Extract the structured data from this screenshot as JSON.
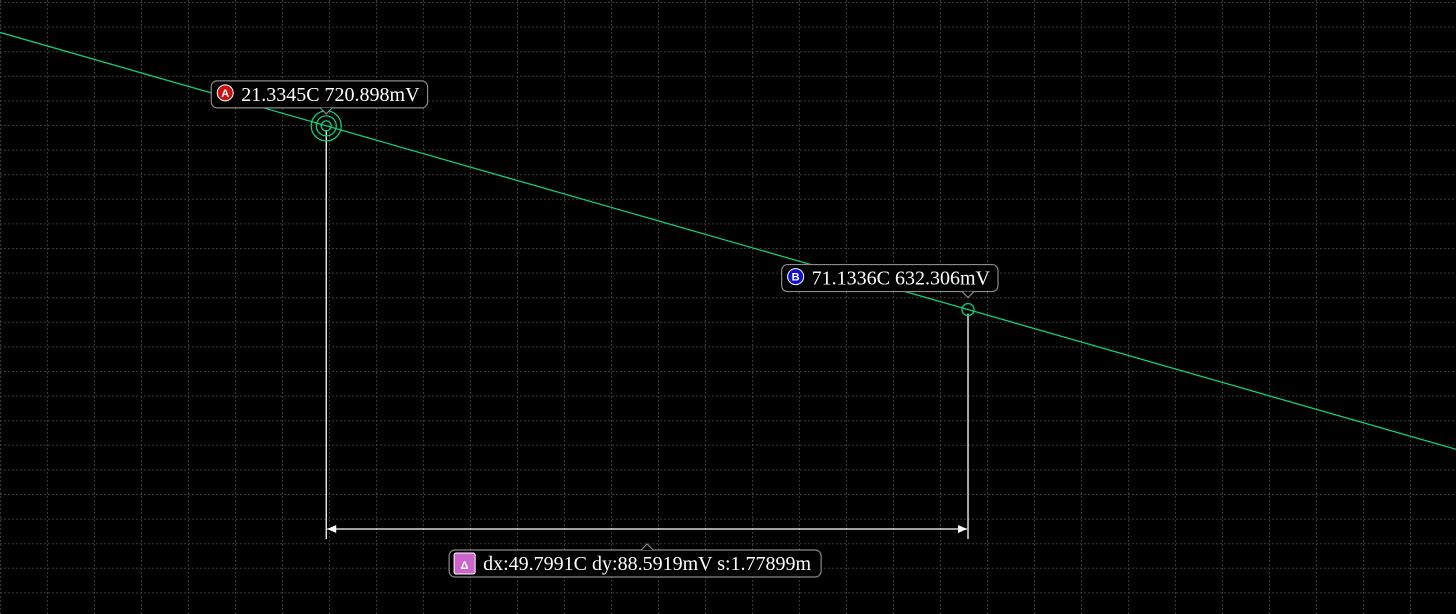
{
  "chart_data": {
    "type": "line",
    "grid": true,
    "series": [
      {
        "x": [
          -3.98,
          109.0
        ],
        "y": [
          765.96,
          564.95
        ]
      }
    ],
    "xlim": [
      -3.98,
      109.0
    ],
    "ylim": [
      485.5,
      781.6
    ],
    "cursors": [
      {
        "id": "A",
        "x": 21.3345,
        "y": 720.898,
        "label": "21.3345C 720.898mV",
        "color": "#cc1111"
      },
      {
        "id": "B",
        "x": 71.1336,
        "y": 632.306,
        "label": "71.1336C 632.306mV",
        "color": "#1111cc"
      }
    ],
    "delta": {
      "symbol": "Δ",
      "label": "dx:49.7991C dy:88.5919mV s:1.77899m",
      "dx": 49.7991,
      "dy": 88.5919,
      "slope": 1.77899,
      "color": "#cc66cc"
    },
    "colors": {
      "background": "#000000",
      "grid": "#3a3a3a",
      "trace": "#11cc77",
      "annotation": "#ffffff",
      "label_border": "#8a8a8a"
    }
  }
}
